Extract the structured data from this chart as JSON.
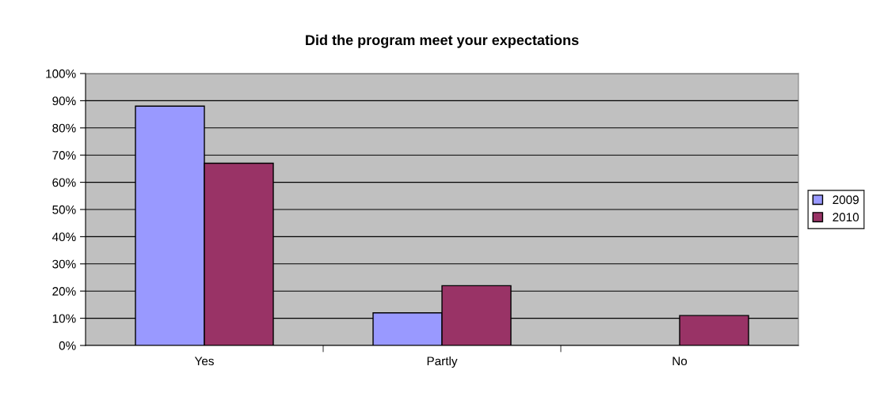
{
  "chart_data": {
    "type": "bar",
    "title": "Did the program meet your expectations",
    "categories": [
      "Yes",
      "Partly",
      "No"
    ],
    "series": [
      {
        "name": "2009",
        "color": "#9999ff",
        "values": [
          88,
          12,
          0
        ]
      },
      {
        "name": "2010",
        "color": "#993366",
        "values": [
          67,
          22,
          11
        ]
      }
    ],
    "ylim": [
      0,
      100
    ],
    "yticks": [
      {
        "value": 0,
        "label": "0%"
      },
      {
        "value": 10,
        "label": "10%"
      },
      {
        "value": 20,
        "label": "20%"
      },
      {
        "value": 30,
        "label": "30%"
      },
      {
        "value": 40,
        "label": "40%"
      },
      {
        "value": 50,
        "label": "50%"
      },
      {
        "value": 60,
        "label": "60%"
      },
      {
        "value": 70,
        "label": "70%"
      },
      {
        "value": 80,
        "label": "80%"
      },
      {
        "value": 90,
        "label": "90%"
      },
      {
        "value": 100,
        "label": "100%"
      }
    ],
    "grid": "y",
    "legend": "right"
  }
}
